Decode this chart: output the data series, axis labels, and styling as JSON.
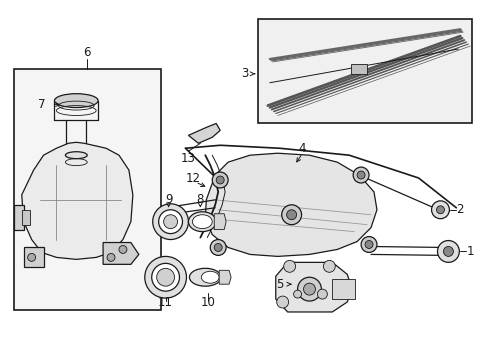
{
  "bg_color": "#ffffff",
  "lc": "#1a1a1a",
  "gray_light": "#e8e8e8",
  "gray_mid": "#c8c8c8",
  "gray_dark": "#888888",
  "fig_w": 4.89,
  "fig_h": 3.6,
  "dpi": 100,
  "xlim": [
    0,
    489
  ],
  "ylim": [
    0,
    360
  ]
}
